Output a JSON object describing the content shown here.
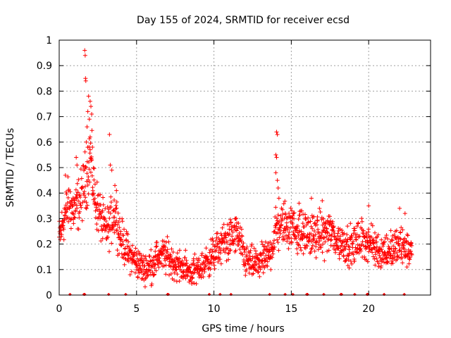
{
  "chart_data": {
    "type": "scatter",
    "title": "Day 155 of 2024, SRMTID for receiver ecsd",
    "xlabel": "GPS time / hours",
    "ylabel": "SRMTID / TECUs",
    "xlim": [
      0,
      24
    ],
    "ylim": [
      0,
      1
    ],
    "grid": true,
    "x_ticks": [
      0,
      5,
      10,
      15,
      20
    ],
    "x_tick_labels": [
      "0",
      "5",
      "10",
      "15",
      "20"
    ],
    "y_ticks": [
      0,
      0.1,
      0.2,
      0.3,
      0.4,
      0.5,
      0.6,
      0.7,
      0.8,
      0.9,
      1
    ],
    "y_tick_labels": [
      "0",
      "0.1",
      "0.2",
      "0.3",
      "0.4",
      "0.5",
      "0.6",
      "0.7",
      "0.8",
      "0.9",
      "1"
    ],
    "series": [
      {
        "name": "SRMTID",
        "color": "#ff0000",
        "marker": "plus",
        "baseline_profile": {
          "x": [
            0,
            0.3,
            0.6,
            1.0,
            1.4,
            1.7,
            2.0,
            2.3,
            2.7,
            3.0,
            3.3,
            3.6,
            4.0,
            4.5,
            5.0,
            5.5,
            6.0,
            6.5,
            7.0,
            7.5,
            8.0,
            8.5,
            9.0,
            9.5,
            10.0,
            10.5,
            11.0,
            11.5,
            12.0,
            12.5,
            13.0,
            13.5,
            13.8,
            14.0,
            14.3,
            14.7,
            15.0,
            15.5,
            16.0,
            16.5,
            17.0,
            17.5,
            18.0,
            18.5,
            19.0,
            19.5,
            20.0,
            20.5,
            21.0,
            21.5,
            22.0,
            22.5,
            22.8
          ],
          "y": [
            0.22,
            0.3,
            0.36,
            0.33,
            0.38,
            0.45,
            0.55,
            0.38,
            0.3,
            0.25,
            0.28,
            0.33,
            0.22,
            0.16,
            0.13,
            0.1,
            0.12,
            0.16,
            0.15,
            0.12,
            0.11,
            0.09,
            0.1,
            0.13,
            0.16,
            0.2,
            0.22,
            0.24,
            0.14,
            0.12,
            0.13,
            0.15,
            0.2,
            0.26,
            0.27,
            0.28,
            0.27,
            0.25,
            0.24,
            0.23,
            0.24,
            0.25,
            0.21,
            0.2,
            0.19,
            0.22,
            0.21,
            0.18,
            0.17,
            0.18,
            0.19,
            0.18,
            0.17
          ]
        },
        "highlight_points": [
          {
            "x": 1.65,
            "y": 0.96
          },
          {
            "x": 1.68,
            "y": 0.94
          },
          {
            "x": 1.7,
            "y": 0.85
          },
          {
            "x": 1.72,
            "y": 0.84
          },
          {
            "x": 1.9,
            "y": 0.78
          },
          {
            "x": 2.0,
            "y": 0.76
          },
          {
            "x": 2.05,
            "y": 0.74
          },
          {
            "x": 1.85,
            "y": 0.72
          },
          {
            "x": 2.1,
            "y": 0.71
          },
          {
            "x": 1.95,
            "y": 0.69
          },
          {
            "x": 1.8,
            "y": 0.66
          },
          {
            "x": 2.0,
            "y": 0.62
          },
          {
            "x": 1.75,
            "y": 0.6
          },
          {
            "x": 2.15,
            "y": 0.58
          },
          {
            "x": 3.25,
            "y": 0.63
          },
          {
            "x": 3.3,
            "y": 0.51
          },
          {
            "x": 3.4,
            "y": 0.49
          },
          {
            "x": 14.05,
            "y": 0.64
          },
          {
            "x": 14.1,
            "y": 0.63
          },
          {
            "x": 14.0,
            "y": 0.55
          },
          {
            "x": 14.05,
            "y": 0.54
          },
          {
            "x": 14.0,
            "y": 0.48
          },
          {
            "x": 14.1,
            "y": 0.45
          },
          {
            "x": 14.15,
            "y": 0.42
          },
          {
            "x": 14.2,
            "y": 0.38
          },
          {
            "x": 1.1,
            "y": 0.54
          },
          {
            "x": 1.15,
            "y": 0.51
          },
          {
            "x": 0.4,
            "y": 0.47
          },
          {
            "x": 3.6,
            "y": 0.43
          },
          {
            "x": 3.7,
            "y": 0.41
          },
          {
            "x": 16.3,
            "y": 0.38
          },
          {
            "x": 17.0,
            "y": 0.37
          },
          {
            "x": 20.0,
            "y": 0.35
          },
          {
            "x": 22.0,
            "y": 0.34
          },
          {
            "x": 22.35,
            "y": 0.32
          },
          {
            "x": 15.5,
            "y": 0.36
          }
        ],
        "axis_markers_x": [
          0.7,
          1.6,
          1.65,
          3.2,
          4.3,
          7.0,
          7.05,
          9.7,
          10.4,
          11.1,
          13.6,
          14.6,
          15.1,
          16.0,
          16.05,
          17.1,
          18.2,
          18.25,
          19.1,
          19.9,
          19.95,
          21.0,
          22.3
        ]
      }
    ]
  }
}
